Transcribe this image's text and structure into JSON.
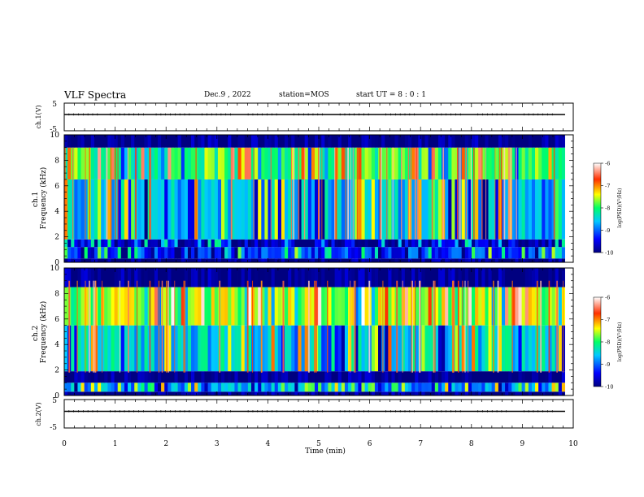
{
  "header": {
    "title": "VLF Spectra",
    "date": "Dec.9 , 2022",
    "station": "station=MOS",
    "start_ut": "start UT = 8 : 0 : 1"
  },
  "panels": {
    "ch1_wave": {
      "ylabel": "ch.1(V)",
      "ticks": [
        "5",
        "-5"
      ]
    },
    "ch1_spec": {
      "ylabel_top": "ch.1",
      "ylabel": "Frequency (kHz)",
      "ticks": [
        "10",
        "8",
        "6",
        "4",
        "2",
        "0"
      ]
    },
    "ch2_spec": {
      "ylabel_top": "ch.2",
      "ylabel": "Frequency (kHz)",
      "ticks": [
        "10",
        "8",
        "6",
        "4",
        "2",
        "0"
      ]
    },
    "ch2_wave": {
      "ylabel": "ch.2(V)",
      "ticks": [
        "5",
        "-5"
      ]
    }
  },
  "xaxis": {
    "label": "Time (min)",
    "ticks": [
      "0",
      "1",
      "2",
      "3",
      "4",
      "5",
      "6",
      "7",
      "8",
      "9",
      "10"
    ]
  },
  "colorbar": {
    "label": "log(PSD)(V²/Hz)",
    "ticks": [
      "-6",
      "-7",
      "-8",
      "-9",
      "-10"
    ]
  },
  "chart_data": [
    {
      "type": "line",
      "ylabel": "ch.1(V)",
      "xlabel": "Time (min)",
      "xlim": [
        0,
        10
      ],
      "ylim": [
        -5,
        5
      ],
      "series": [
        {
          "x": [
            0,
            9.84
          ],
          "y": [
            0,
            0
          ]
        }
      ]
    },
    {
      "type": "heatmap",
      "ylabel": "Frequency (kHz)",
      "xlim": [
        0,
        10
      ],
      "ylim": [
        0,
        10
      ],
      "colorbar": {
        "label": "log(PSD)(V²/Hz)",
        "range": [
          -10,
          -6
        ]
      },
      "data_extent_x": [
        0,
        9.84
      ],
      "bands_khz": [
        {
          "f": [
            0,
            0.3
          ],
          "level": -10
        },
        {
          "f": [
            0.3,
            1.2
          ],
          "level": -9.2
        },
        {
          "f": [
            1.2,
            1.8
          ],
          "level": -9.6
        },
        {
          "f": [
            1.8,
            6.5
          ],
          "level": -8.6
        },
        {
          "f": [
            6.5,
            9.0
          ],
          "level": -7.9
        },
        {
          "f": [
            9.0,
            10
          ],
          "level": -10
        }
      ]
    },
    {
      "type": "heatmap",
      "ylabel": "Frequency (kHz)",
      "xlim": [
        0,
        10
      ],
      "ylim": [
        0,
        10
      ],
      "colorbar": {
        "label": "log(PSD)(V²/Hz)",
        "range": [
          -10,
          -6
        ]
      },
      "data_extent_x": [
        0,
        9.84
      ],
      "bands_khz": [
        {
          "f": [
            0,
            0.3
          ],
          "level": -10
        },
        {
          "f": [
            0.3,
            1.0
          ],
          "level": -8.8
        },
        {
          "f": [
            1.0,
            1.9
          ],
          "level": -10
        },
        {
          "f": [
            1.9,
            5.5
          ],
          "level": -8.5
        },
        {
          "f": [
            5.5,
            8.5
          ],
          "level": -7.6
        },
        {
          "f": [
            8.5,
            10
          ],
          "level": -10
        }
      ]
    },
    {
      "type": "line",
      "ylabel": "ch.2(V)",
      "xlabel": "Time (min)",
      "xlim": [
        0,
        10
      ],
      "ylim": [
        -5,
        5
      ],
      "series": [
        {
          "x": [
            0,
            9.84
          ],
          "y": [
            0,
            0
          ]
        }
      ]
    }
  ]
}
